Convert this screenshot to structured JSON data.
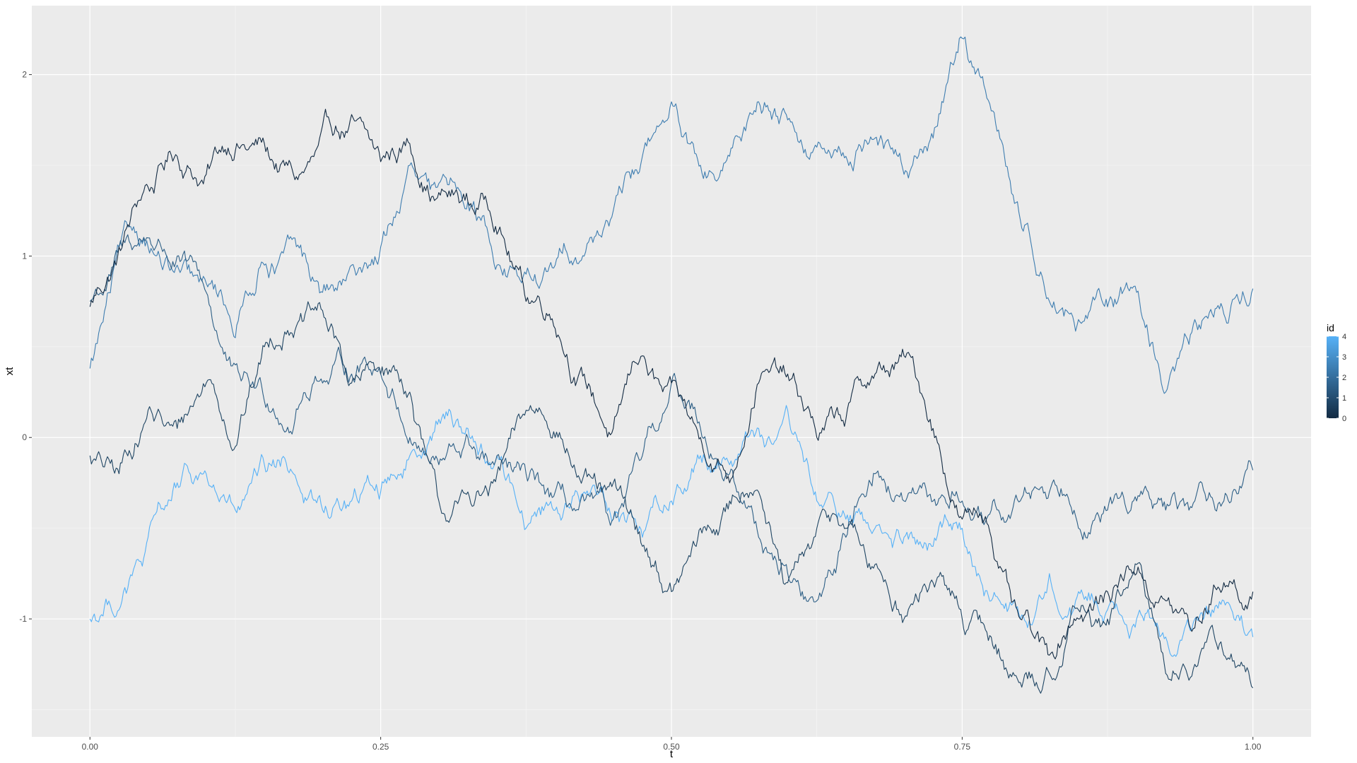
{
  "chart_data": {
    "type": "line",
    "title": "",
    "xlabel": "t",
    "ylabel": "xt",
    "xlim": [
      -0.05,
      1.05
    ],
    "ylim": [
      -1.65,
      2.38
    ],
    "x_ticks": [
      0.0,
      0.25,
      0.5,
      0.75,
      1.0
    ],
    "x_tick_labels": [
      "0.00",
      "0.25",
      "0.50",
      "0.75",
      "1.00"
    ],
    "y_ticks": [
      -1,
      0,
      1,
      2
    ],
    "y_tick_labels": [
      "-1",
      "0",
      "1",
      "2"
    ],
    "grid": true,
    "legend": {
      "title": "id",
      "type": "colorbar",
      "placement": "right",
      "range": [
        0,
        4
      ],
      "tick_labels": [
        "0",
        "1",
        "2",
        "3",
        "4"
      ],
      "color_low": "#132B43",
      "color_high": "#56B1F7"
    },
    "colors": {
      "panel_background": "#EBEBEB",
      "grid_major": "#FFFFFF",
      "grid_minor": "#F5F5F5"
    },
    "series": [
      {
        "id": 0,
        "color": "#132B43",
        "x": [
          0.0,
          0.025,
          0.05,
          0.075,
          0.1,
          0.125,
          0.15,
          0.175,
          0.2,
          0.225,
          0.25,
          0.275,
          0.3,
          0.325,
          0.35,
          0.375,
          0.4,
          0.425,
          0.45,
          0.475,
          0.5,
          0.525,
          0.55,
          0.575,
          0.6,
          0.625,
          0.65,
          0.675,
          0.7,
          0.725,
          0.75,
          0.775,
          0.8,
          0.825,
          0.85,
          0.875,
          0.9,
          0.925,
          0.95,
          0.975,
          1.0
        ],
        "y": [
          0.72,
          1.05,
          1.38,
          1.55,
          1.45,
          1.58,
          1.62,
          1.45,
          1.72,
          1.78,
          1.52,
          1.62,
          1.35,
          1.3,
          1.12,
          0.75,
          0.6,
          0.35,
          0.05,
          0.45,
          0.3,
          0.0,
          -0.25,
          0.3,
          0.35,
          0.0,
          0.1,
          0.35,
          0.45,
          0.05,
          -0.45,
          -0.55,
          -1.0,
          -1.2,
          -1.0,
          -0.85,
          -0.75,
          -0.9,
          -1.05,
          -0.8,
          -0.85
        ]
      },
      {
        "id": 1,
        "color": "#1F4563",
        "x": [
          0.0,
          0.025,
          0.05,
          0.075,
          0.1,
          0.125,
          0.15,
          0.175,
          0.2,
          0.225,
          0.25,
          0.275,
          0.3,
          0.325,
          0.35,
          0.375,
          0.4,
          0.425,
          0.45,
          0.475,
          0.5,
          0.525,
          0.55,
          0.575,
          0.6,
          0.625,
          0.65,
          0.675,
          0.7,
          0.725,
          0.75,
          0.775,
          0.8,
          0.825,
          0.85,
          0.875,
          0.9,
          0.925,
          0.95,
          0.975,
          1.0
        ],
        "y": [
          -0.1,
          -0.2,
          0.15,
          0.05,
          0.3,
          -0.05,
          0.5,
          0.55,
          0.7,
          0.3,
          0.35,
          0.25,
          -0.35,
          -0.3,
          -0.2,
          0.15,
          0.0,
          -0.2,
          -0.25,
          -0.6,
          -0.85,
          -0.5,
          -0.35,
          -0.3,
          -0.8,
          -0.5,
          -0.5,
          -0.7,
          -1.0,
          -0.8,
          -1.0,
          -1.1,
          -1.35,
          -1.3,
          -0.95,
          -1.0,
          -0.7,
          -1.3,
          -1.25,
          -1.2,
          -1.38
        ]
      },
      {
        "id": 2,
        "color": "#2D5F86",
        "x": [
          0.0,
          0.025,
          0.05,
          0.075,
          0.1,
          0.125,
          0.15,
          0.175,
          0.2,
          0.225,
          0.25,
          0.275,
          0.3,
          0.325,
          0.35,
          0.375,
          0.4,
          0.425,
          0.45,
          0.475,
          0.5,
          0.525,
          0.55,
          0.575,
          0.6,
          0.625,
          0.65,
          0.675,
          0.7,
          0.725,
          0.75,
          0.775,
          0.8,
          0.825,
          0.85,
          0.875,
          0.9,
          0.925,
          0.95,
          0.975,
          1.0
        ],
        "y": [
          0.75,
          1.05,
          1.1,
          1.0,
          0.8,
          0.4,
          0.2,
          0.05,
          0.3,
          0.35,
          0.35,
          0.0,
          -0.15,
          0.0,
          -0.1,
          -0.2,
          -0.3,
          -0.35,
          -0.45,
          -0.1,
          0.3,
          0.05,
          -0.2,
          -0.55,
          -0.75,
          -0.9,
          -0.55,
          -0.2,
          -0.35,
          -0.35,
          -0.35,
          -0.4,
          -0.35,
          -0.3,
          -0.5,
          -0.4,
          -0.35,
          -0.4,
          -0.35,
          -0.35,
          -0.18
        ]
      },
      {
        "id": 3,
        "color": "#3E7DB0",
        "x": [
          0.0,
          0.025,
          0.05,
          0.075,
          0.1,
          0.125,
          0.15,
          0.175,
          0.2,
          0.225,
          0.25,
          0.275,
          0.3,
          0.325,
          0.35,
          0.375,
          0.4,
          0.425,
          0.45,
          0.475,
          0.5,
          0.525,
          0.55,
          0.575,
          0.6,
          0.625,
          0.65,
          0.675,
          0.7,
          0.725,
          0.75,
          0.775,
          0.8,
          0.825,
          0.85,
          0.875,
          0.9,
          0.925,
          0.95,
          0.975,
          1.0
        ],
        "y": [
          0.38,
          1.05,
          1.05,
          0.95,
          0.85,
          0.55,
          0.95,
          1.1,
          0.8,
          0.95,
          1.05,
          1.5,
          1.4,
          1.3,
          0.95,
          0.9,
          0.95,
          1.0,
          1.25,
          1.55,
          1.85,
          1.5,
          1.55,
          1.85,
          1.75,
          1.6,
          1.55,
          1.65,
          1.45,
          1.65,
          2.2,
          1.8,
          1.2,
          0.75,
          0.65,
          0.72,
          0.8,
          0.25,
          0.65,
          0.68,
          0.82
        ]
      },
      {
        "id": 4,
        "color": "#56B1F7",
        "x": [
          0.0,
          0.025,
          0.05,
          0.075,
          0.1,
          0.125,
          0.15,
          0.175,
          0.2,
          0.225,
          0.25,
          0.275,
          0.3,
          0.325,
          0.35,
          0.375,
          0.4,
          0.425,
          0.45,
          0.475,
          0.5,
          0.525,
          0.55,
          0.575,
          0.6,
          0.625,
          0.65,
          0.675,
          0.7,
          0.725,
          0.75,
          0.775,
          0.8,
          0.825,
          0.85,
          0.875,
          0.9,
          0.925,
          0.95,
          0.975,
          1.0
        ],
        "y": [
          -1.0,
          -0.95,
          -0.55,
          -0.25,
          -0.2,
          -0.4,
          -0.15,
          -0.2,
          -0.4,
          -0.35,
          -0.3,
          -0.1,
          0.1,
          0.05,
          -0.1,
          -0.5,
          -0.4,
          -0.3,
          -0.45,
          -0.55,
          -0.35,
          -0.1,
          -0.15,
          0.05,
          0.15,
          -0.35,
          -0.45,
          -0.5,
          -0.55,
          -0.6,
          -0.5,
          -0.9,
          -1.0,
          -0.75,
          -0.85,
          -0.95,
          -1.0,
          -1.1,
          -1.0,
          -0.9,
          -1.1
        ]
      }
    ]
  }
}
